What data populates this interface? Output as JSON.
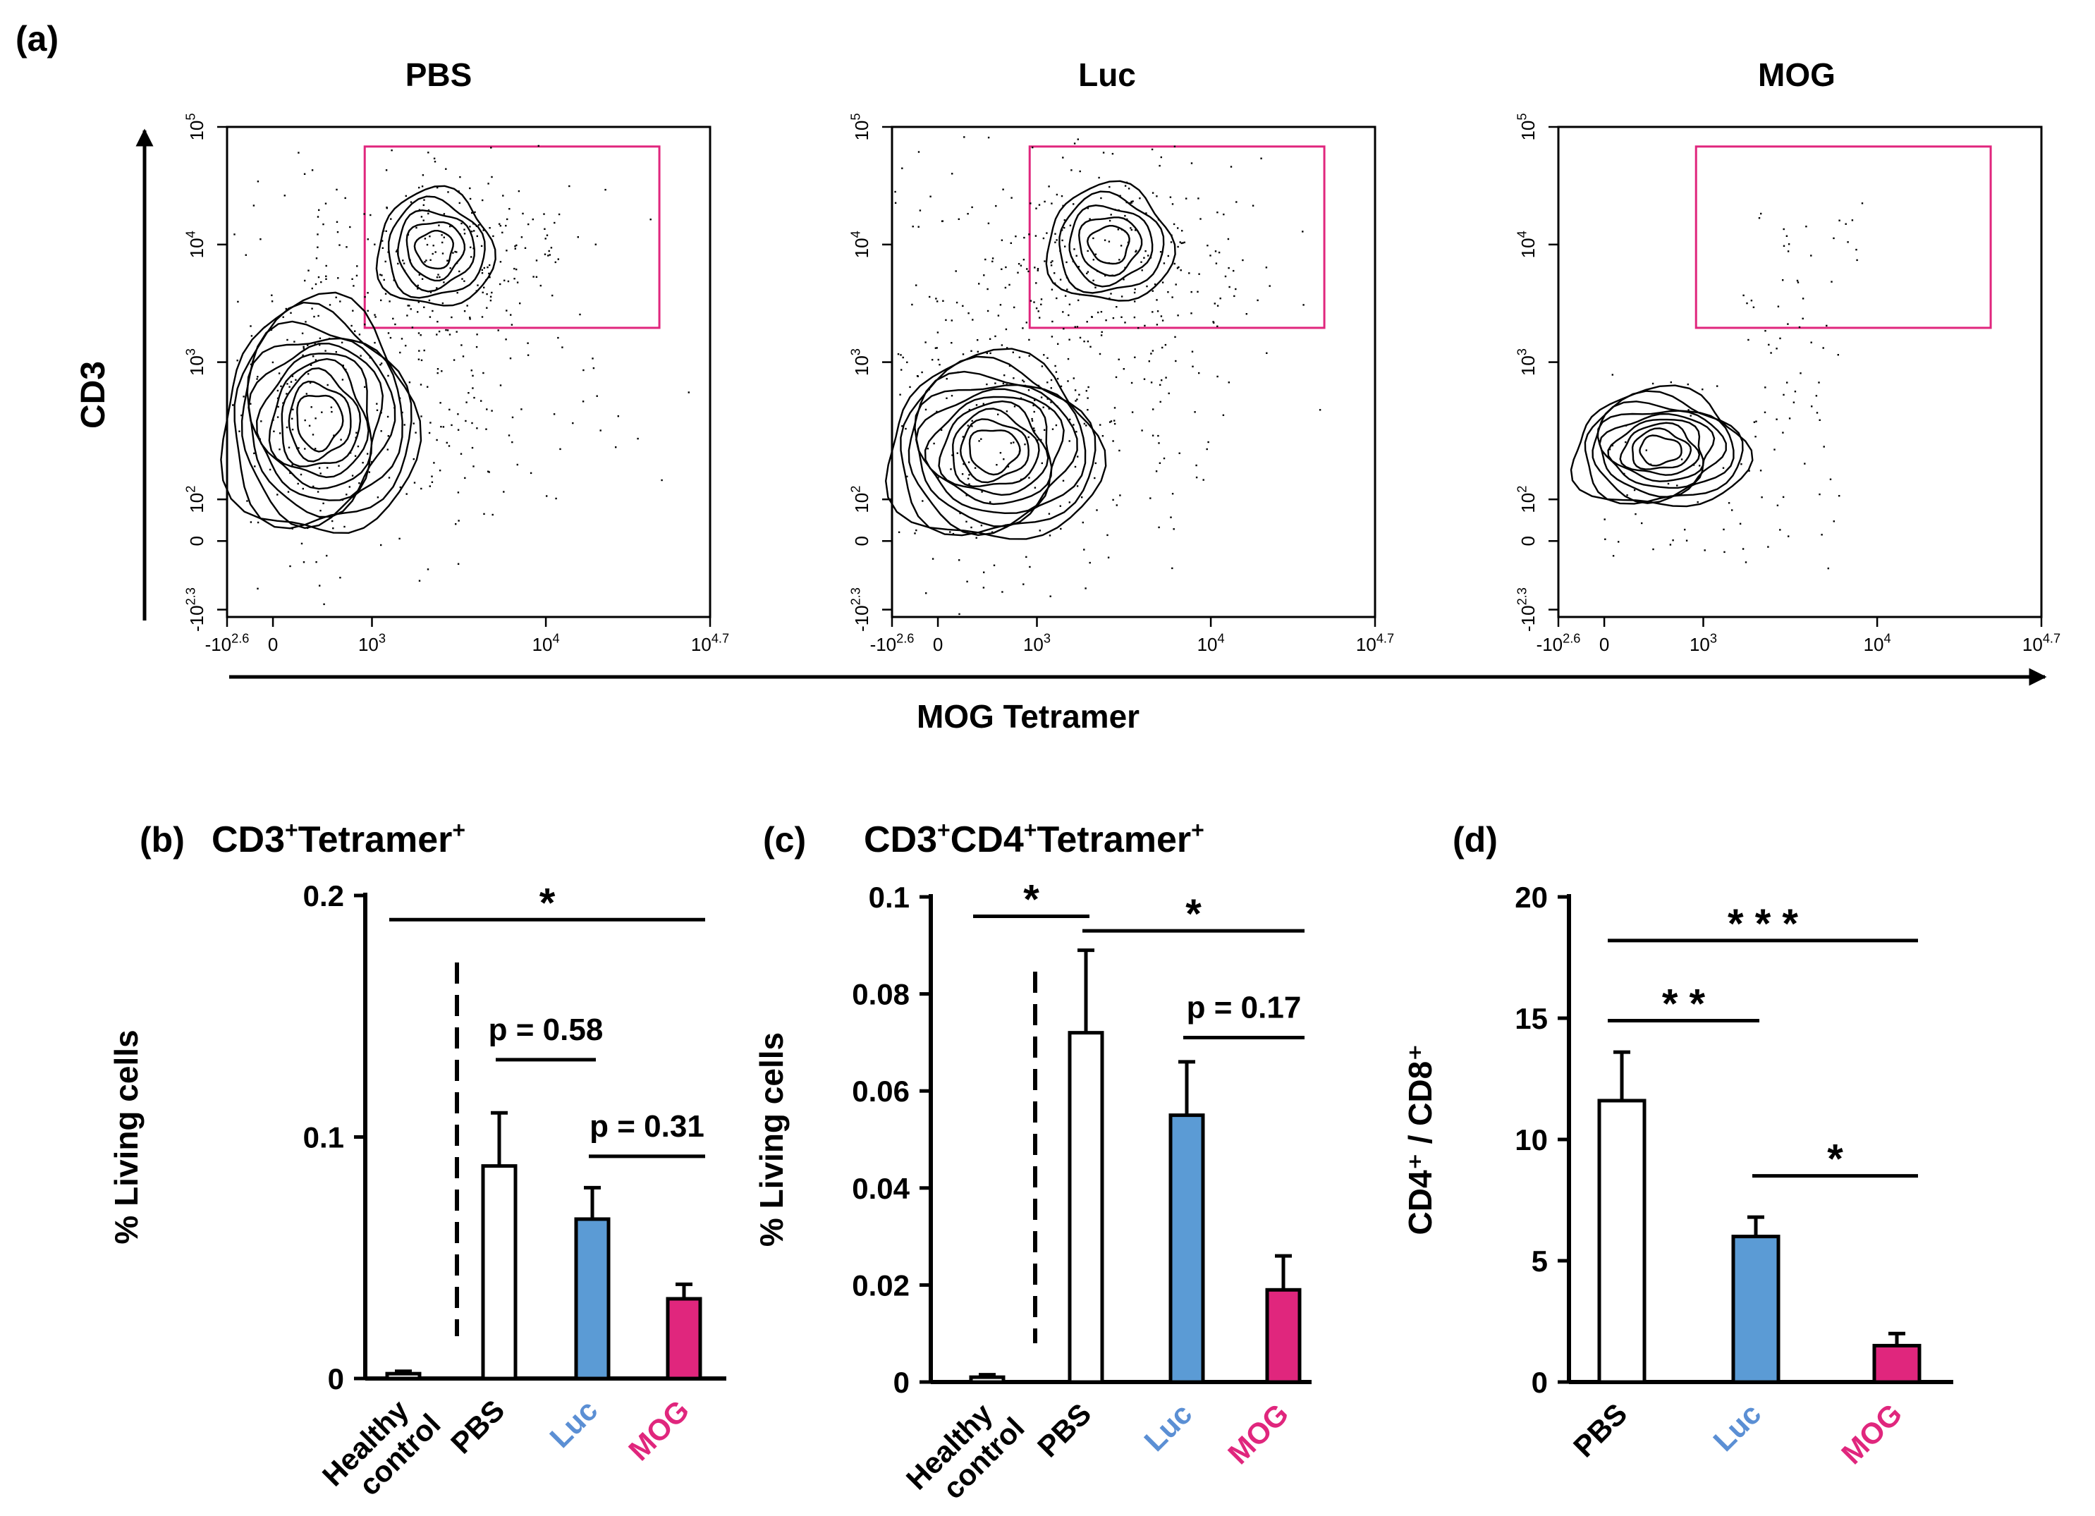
{
  "panel_a": {
    "label": "(a)",
    "y_axis_label": "CD3",
    "x_axis_label": "MOG Tetramer",
    "y_ticks": [
      "10",
      "10",
      "10",
      "10",
      "0",
      "-10"
    ],
    "y_tick_exps": [
      "5",
      "4",
      "3",
      "2",
      "",
      "2.3"
    ],
    "x_ticks": [
      "-10",
      "0",
      "10",
      "10",
      "10"
    ],
    "x_tick_exps": [
      "2.6",
      "",
      "3",
      "4",
      "4.7"
    ],
    "plots": [
      {
        "title": "PBS"
      },
      {
        "title": "Luc"
      },
      {
        "title": "MOG"
      }
    ],
    "gate_color": "#e0267d"
  },
  "chart_data": [
    {
      "panel": "(b)",
      "type": "bar",
      "title": "CD3",
      "title_sup1": "+",
      "title_mid": "Tetramer",
      "title_sup2": "+",
      "ylabel": "% Living cells",
      "ylim": [
        0,
        0.2
      ],
      "yticks": [
        "0",
        "0.1",
        "0.2"
      ],
      "ytick_values": [
        0,
        0.1,
        0.2
      ],
      "categories": [
        "Healthy\ncontrol",
        "PBS",
        "Luc",
        "MOG"
      ],
      "cat_lines": [
        [
          "Healthy",
          "control"
        ],
        [
          "PBS"
        ],
        [
          "Luc"
        ],
        [
          "MOG"
        ]
      ],
      "values": [
        0.002,
        0.088,
        0.066,
        0.033
      ],
      "errors": [
        0.001,
        0.022,
        0.013,
        0.006
      ],
      "colors": [
        "#ffffff",
        "#ffffff",
        "#5b9bd5",
        "#e0267d"
      ],
      "label_colors": [
        "#000000",
        "#000000",
        "#5b8fd4",
        "#e0267d"
      ],
      "annotations": [
        {
          "text": "*",
          "from": 0,
          "to": 3,
          "y": 0.19
        },
        {
          "text": "p = 0.58",
          "from": 1,
          "to": 2,
          "y": 0.132
        },
        {
          "text": "p = 0.31",
          "from": 2,
          "to": 3,
          "y": 0.092
        }
      ]
    },
    {
      "panel": "(c)",
      "type": "bar",
      "title": "CD3",
      "title_sup1": "+",
      "title_mid": "CD4",
      "title_sup2": "+",
      "title_end": "Tetramer",
      "title_sup3": "+",
      "ylabel": "% Living cells",
      "ylim": [
        0,
        0.1
      ],
      "yticks": [
        "0",
        "0.02",
        "0.04",
        "0.06",
        "0.08",
        "0.1"
      ],
      "ytick_values": [
        0,
        0.02,
        0.04,
        0.06,
        0.08,
        0.1
      ],
      "categories": [
        "Healthy\ncontrol",
        "PBS",
        "Luc",
        "MOG"
      ],
      "cat_lines": [
        [
          "Healthy",
          "control"
        ],
        [
          "PBS"
        ],
        [
          "Luc"
        ],
        [
          "MOG"
        ]
      ],
      "values": [
        0.001,
        0.072,
        0.055,
        0.019
      ],
      "errors": [
        0.0005,
        0.017,
        0.011,
        0.007
      ],
      "colors": [
        "#ffffff",
        "#ffffff",
        "#5b9bd5",
        "#e0267d"
      ],
      "label_colors": [
        "#000000",
        "#000000",
        "#5b8fd4",
        "#e0267d"
      ],
      "annotations": [
        {
          "text": "*",
          "from": 0,
          "to": 1,
          "y": 0.096
        },
        {
          "text": "*",
          "from": 1,
          "to": 3,
          "y": 0.093
        },
        {
          "text": "p = 0.17",
          "from": 2,
          "to": 3,
          "y": 0.071
        }
      ]
    },
    {
      "panel": "(d)",
      "type": "bar",
      "ylabel": "CD4⁺ / CD8⁺",
      "ylim": [
        0,
        20
      ],
      "yticks": [
        "0",
        "5",
        "10",
        "15",
        "20"
      ],
      "ytick_values": [
        0,
        5,
        10,
        15,
        20
      ],
      "categories": [
        "PBS",
        "Luc",
        "MOG"
      ],
      "cat_lines": [
        [
          "PBS"
        ],
        [
          "Luc"
        ],
        [
          "MOG"
        ]
      ],
      "values": [
        11.6,
        6.0,
        1.5
      ],
      "errors": [
        2.0,
        0.8,
        0.5
      ],
      "colors": [
        "#ffffff",
        "#5b9bd5",
        "#e0267d"
      ],
      "label_colors": [
        "#000000",
        "#5b8fd4",
        "#e0267d"
      ],
      "annotations": [
        {
          "text": "***",
          "from": 0,
          "to": 2,
          "y": 18.2
        },
        {
          "text": "**",
          "from": 0,
          "to": 1,
          "y": 14.9
        },
        {
          "text": "*",
          "from": 1,
          "to": 2,
          "y": 8.5
        }
      ]
    }
  ]
}
